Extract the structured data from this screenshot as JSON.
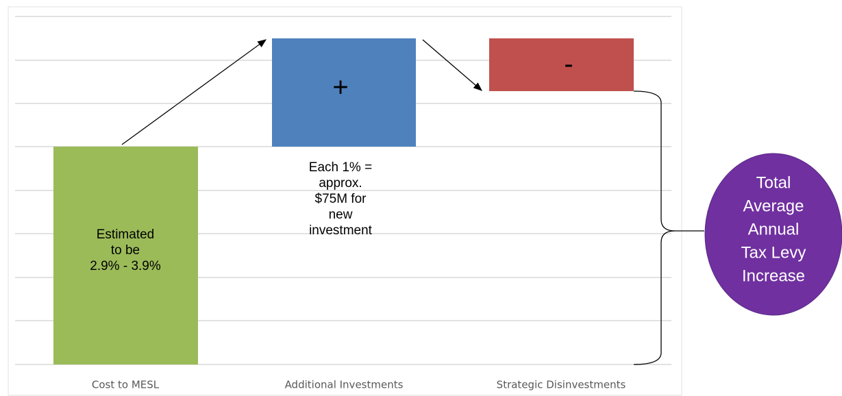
{
  "categories": [
    "Cost to MESL",
    "Additional Investments",
    "Strategic Disinvestments"
  ],
  "bars": [
    {
      "lines": [
        "Estimated",
        "to be",
        "2.9% - 3.9%"
      ]
    },
    {
      "lines": [
        "+"
      ]
    },
    {
      "lines": [
        "-"
      ]
    }
  ],
  "annotation": {
    "lines": [
      "Each 1% =",
      "approx.",
      "$75M for",
      "new",
      "investment"
    ]
  },
  "total": {
    "lines": [
      "Total",
      "Average",
      "Annual",
      "Tax Levy",
      "Increase"
    ]
  }
}
